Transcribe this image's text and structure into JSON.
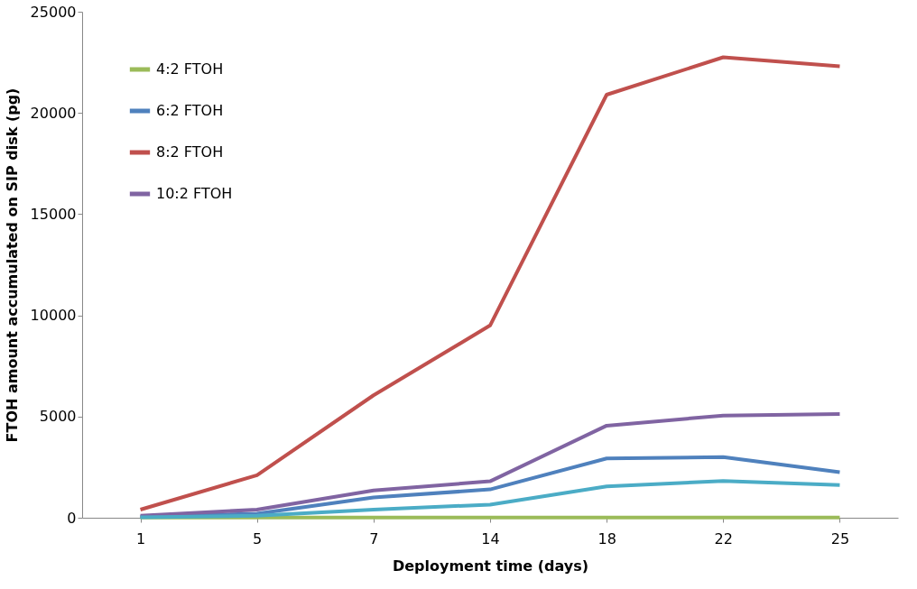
{
  "chart_data": {
    "type": "line",
    "xlabel": "Deployment time (days)",
    "ylabel": "FTOH amount accumulated on SIP disk (pg)",
    "categories": [
      "1",
      "5",
      "7",
      "14",
      "18",
      "22",
      "25"
    ],
    "ylim": [
      0,
      25000
    ],
    "yticks": [
      0,
      5000,
      10000,
      15000,
      20000,
      25000
    ],
    "grid": false,
    "legend": "top left",
    "marker": "none",
    "line_style": "solid",
    "series": [
      {
        "name": "4:2 FTOH",
        "color": "#9bbb59",
        "values": [
          10,
          10,
          10,
          10,
          10,
          10,
          10
        ]
      },
      {
        "name": "6:2 FTOH",
        "color": "#4f81bd",
        "values": [
          50,
          200,
          1000,
          1400,
          2930,
          3000,
          2250
        ]
      },
      {
        "name": "8:2 FTOH",
        "color": "#c0504d",
        "values": [
          400,
          2100,
          6050,
          9500,
          20900,
          22750,
          22300
        ]
      },
      {
        "name": "10:2 FTOH",
        "color": "#8064a2",
        "values": [
          100,
          400,
          1350,
          1800,
          4550,
          5050,
          5130
        ]
      },
      {
        "color": "#4bacc6",
        "values": [
          20,
          100,
          400,
          650,
          1550,
          1820,
          1620
        ]
      }
    ]
  }
}
